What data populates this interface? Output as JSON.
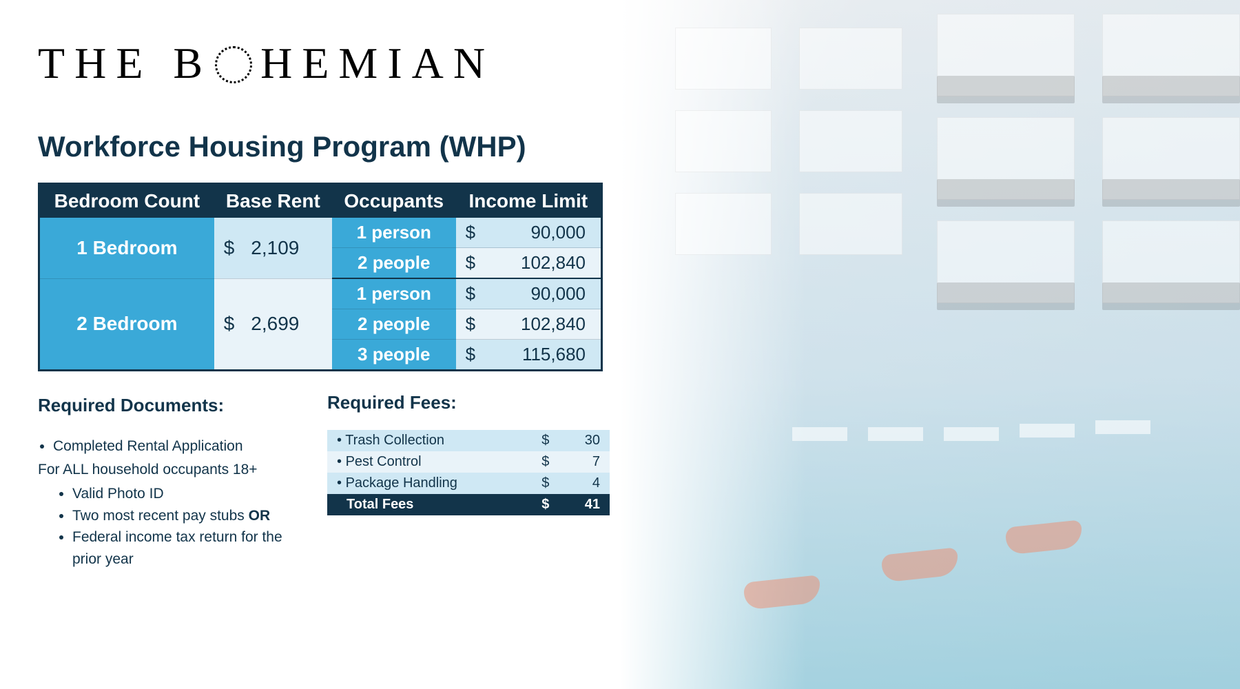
{
  "logo": {
    "part1": "THE B",
    "part2": "HEMIAN"
  },
  "title": "Workforce Housing Program (WHP)",
  "colors": {
    "navy": "#12344a",
    "blue": "#3aa9d8",
    "light1": "#cfe8f4",
    "light2": "#e9f3f9",
    "white": "#ffffff"
  },
  "main_table": {
    "headers": [
      "Bedroom Count",
      "Base Rent",
      "Occupants",
      "Income Limit"
    ],
    "groups": [
      {
        "bedroom": "1 Bedroom",
        "rent": "2,109",
        "rent_shade": "light1",
        "rows": [
          {
            "occupants": "1 person",
            "limit": "90,000",
            "shade": "light1"
          },
          {
            "occupants": "2 people",
            "limit": "102,840",
            "shade": "light2"
          }
        ]
      },
      {
        "bedroom": "2 Bedroom",
        "rent": "2,699",
        "rent_shade": "light2",
        "rows": [
          {
            "occupants": "1 person",
            "limit": "90,000",
            "shade": "light1"
          },
          {
            "occupants": "2 people",
            "limit": "102,840",
            "shade": "light2"
          },
          {
            "occupants": "3 people",
            "limit": "115,680",
            "shade": "light1"
          }
        ]
      }
    ]
  },
  "docs": {
    "heading": "Required Documents:",
    "top_item": "Completed Rental Application",
    "sub_note": "For ALL household occupants 18+",
    "items": [
      "Valid Photo ID",
      "Two most recent pay stubs OR",
      "Federal income tax return for the prior year"
    ],
    "or_word": "OR"
  },
  "fees": {
    "heading": "Required Fees:",
    "rows": [
      {
        "label": "Trash Collection",
        "amount": "30"
      },
      {
        "label": "Pest Control",
        "amount": "7"
      },
      {
        "label": "Package Handling",
        "amount": "4"
      }
    ],
    "total_label": "Total Fees",
    "total_amount": "41"
  }
}
